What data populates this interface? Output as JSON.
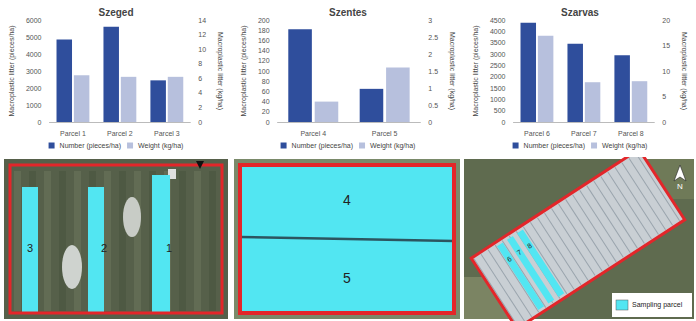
{
  "chart_data": [
    {
      "type": "bar",
      "title": "Szeged",
      "categories": [
        "Parcel 1",
        "Parcel 2",
        "Parcel 3"
      ],
      "series": [
        {
          "name": "Number (pieces/ha)",
          "color": "#2f4e9c",
          "values": [
            4850,
            5600,
            2450
          ]
        },
        {
          "name": "Weight (kg/ha)",
          "color": "#b7c0dd",
          "values": [
            6.4,
            6.2,
            6.2
          ],
          "axis": "y2"
        }
      ],
      "y_label": "Macroplastic litter (pieces/ha)",
      "y2_label": "Macroplastic litter (kg/ha)",
      "ylim": [
        0,
        6000
      ],
      "yticks": [
        0,
        1000,
        2000,
        3000,
        4000,
        5000,
        6000
      ],
      "y2lim": [
        0,
        14
      ],
      "y2ticks": [
        0,
        2,
        4,
        6,
        8,
        10,
        12,
        14
      ],
      "grid": false,
      "legend": "bottom"
    },
    {
      "type": "bar",
      "title": "Szentes",
      "categories": [
        "Parcel 4",
        "Parcel 5"
      ],
      "series": [
        {
          "name": "Number (pieces/ha)",
          "color": "#2f4e9c",
          "values": [
            182,
            65
          ]
        },
        {
          "name": "Weight (kg/ha)",
          "color": "#b7c0dd",
          "values": [
            0.6,
            1.6
          ],
          "axis": "y2"
        }
      ],
      "y_label": "Macroplastic litter (pieces/ha)",
      "y2_label": "Macroplastic litter (kg/ha)",
      "ylim": [
        0,
        200
      ],
      "yticks": [
        0,
        20,
        40,
        60,
        80,
        100,
        120,
        140,
        160,
        180,
        200
      ],
      "y2lim": [
        0,
        3
      ],
      "y2ticks": [
        0,
        0.5,
        1,
        1.5,
        2,
        2.5,
        3
      ],
      "grid": false,
      "legend": "bottom"
    },
    {
      "type": "bar",
      "title": "Szarvas",
      "categories": [
        "Parcel 6",
        "Parcel 7",
        "Parcel 8"
      ],
      "series": [
        {
          "name": "Number (pieces/ha)",
          "color": "#2f4e9c",
          "values": [
            4380,
            3450,
            2950
          ]
        },
        {
          "name": "Weight (kg/ha)",
          "color": "#b7c0dd",
          "values": [
            16.9,
            7.8,
            8.0
          ],
          "axis": "y2"
        }
      ],
      "y_label": "Macroplastic litter (pieces/ha)",
      "y2_label": "Macroplastic litter (kg/ha)",
      "ylim": [
        0,
        4500
      ],
      "yticks": [
        0,
        500,
        1000,
        1500,
        2000,
        2500,
        3000,
        3500,
        4000,
        4500
      ],
      "y2lim": [
        0,
        20
      ],
      "y2ticks": [
        0,
        5,
        10,
        15,
        20
      ],
      "grid": false,
      "legend": "bottom"
    }
  ],
  "maps": [
    {
      "parcels": [
        "3",
        "2",
        "1"
      ]
    },
    {
      "parcels": [
        "4",
        "5"
      ]
    },
    {
      "parcels": [
        "6",
        "7",
        "8"
      ],
      "legend_label": "Sampling parcel",
      "north": "N"
    }
  ]
}
